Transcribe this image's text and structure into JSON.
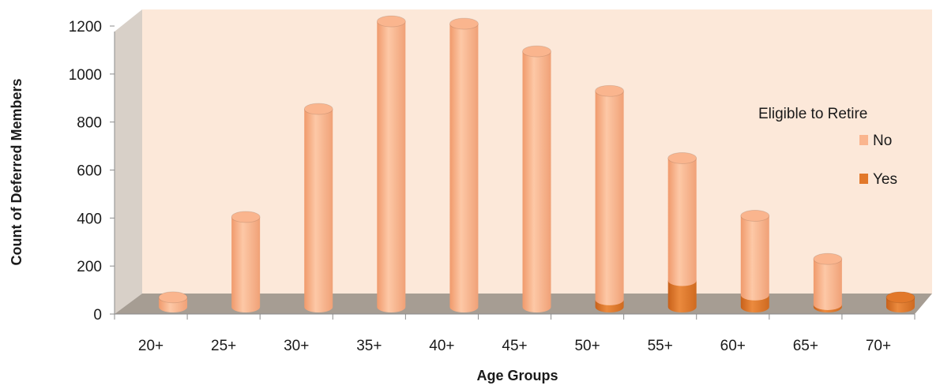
{
  "chart_data": {
    "type": "bar",
    "style": "3d-stacked-cylinder",
    "title": "",
    "xlabel": "Age Groups",
    "ylabel": "Count of Deferred Members",
    "ylim": [
      0,
      1200
    ],
    "yticks": [
      "0",
      "200",
      "400",
      "600",
      "800",
      "1000",
      "1200"
    ],
    "categories": [
      "20+",
      "25+",
      "30+",
      "35+",
      "40+",
      "45+",
      "50+",
      "55+",
      "60+",
      "65+",
      "70+"
    ],
    "legend": {
      "title": "Eligible to Retire",
      "placement": "right"
    },
    "series": [
      {
        "name": "Yes",
        "color": "#e2782a",
        "values": [
          0,
          0,
          0,
          0,
          0,
          0,
          30,
          110,
          50,
          10,
          40
        ]
      },
      {
        "name": "No",
        "color": "#fab58e",
        "values": [
          40,
          375,
          825,
          1190,
          1180,
          1065,
          870,
          510,
          330,
          190,
          0
        ]
      }
    ],
    "colors": {
      "wall": "#fce8d9",
      "floor": "#a69d93",
      "axis": "#8c8c8c"
    }
  }
}
